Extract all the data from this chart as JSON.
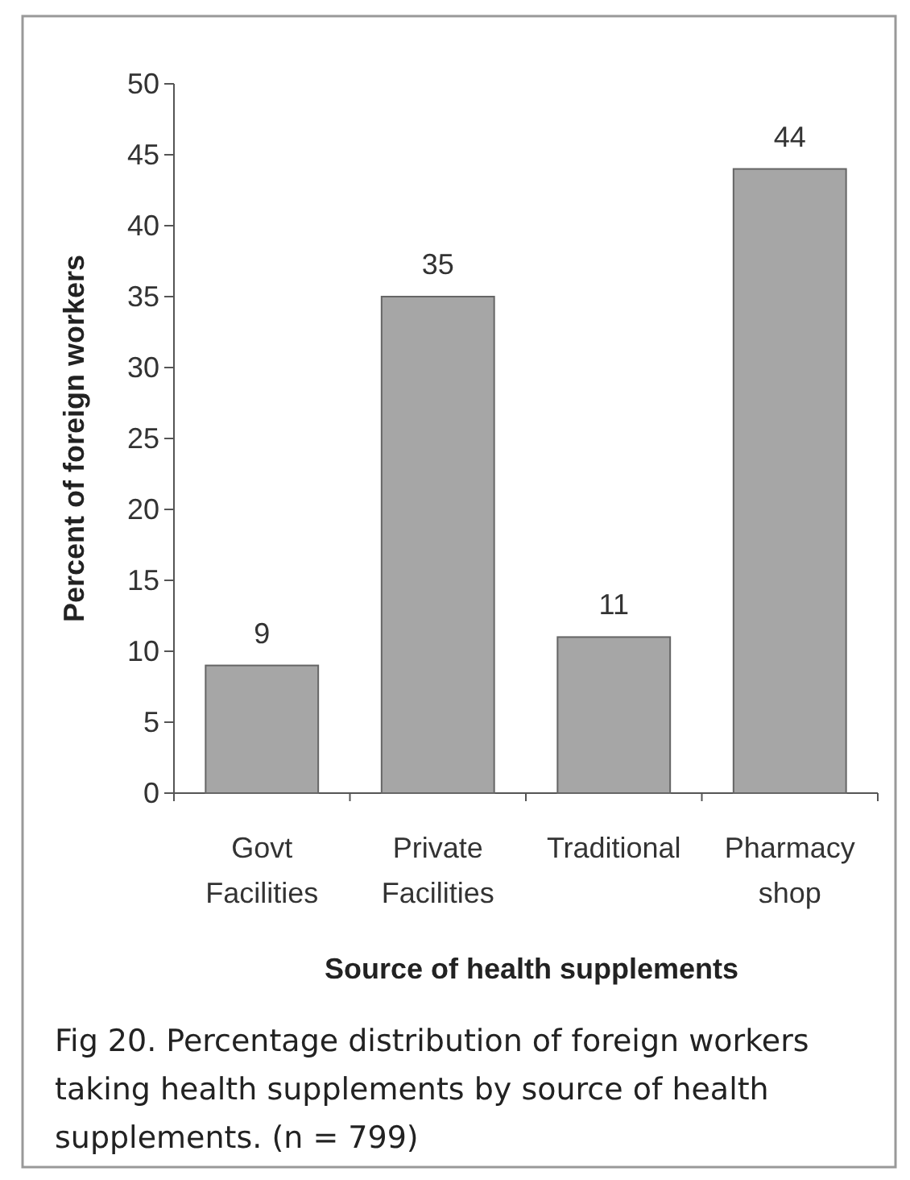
{
  "chart_data": {
    "type": "bar",
    "xlabel": "Source of health supplements",
    "ylabel": "Percent of foreign workers",
    "categories": [
      "Govt Facilities",
      "Private Facilities",
      "Traditional",
      "Pharmacy shop"
    ],
    "values": [
      9,
      35,
      11,
      44
    ],
    "color": "#a6a6a6",
    "ylim": [
      0,
      50
    ],
    "yticks": [
      0,
      5,
      10,
      15,
      20,
      25,
      30,
      35,
      40,
      45,
      50
    ],
    "data_labels": true,
    "annotations": [
      "Fig 20. Percentage distribution of foreign workers taking health supplements by source of health supplements. (n = 799)"
    ]
  }
}
